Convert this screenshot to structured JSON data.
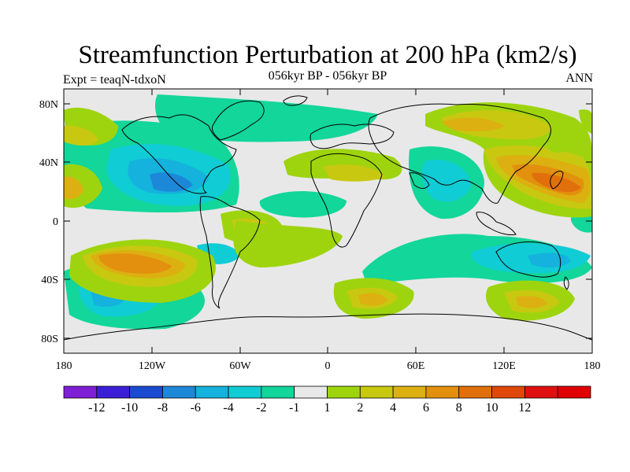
{
  "title": "Streamfunction Perturbation at 200 hPa (km2/s)",
  "subtitle": "056kyr BP - 056kyr BP",
  "left_label": "Expt = teaqN-tdxoN",
  "right_label": "ANN",
  "lat_ticks": [
    "80N",
    "40N",
    "0",
    "40S",
    "80S"
  ],
  "lon_ticks": [
    "180",
    "120W",
    "60W",
    "0",
    "60E",
    "120E",
    "180"
  ],
  "colorbar": {
    "colors": [
      "#7f1fd6",
      "#3a1fd6",
      "#1a4ad0",
      "#1e88d8",
      "#14b2dc",
      "#10ccd4",
      "#12d69a",
      "#e8e8e8",
      "#9ed40e",
      "#c8c810",
      "#dcb010",
      "#e2900e",
      "#e0700c",
      "#e0480a",
      "#e01010",
      "#e00000"
    ],
    "labels": [
      "-12",
      "-10",
      "-8",
      "-6",
      "-4",
      "-2",
      "-1",
      "1",
      "2",
      "4",
      "6",
      "8",
      "10",
      "12"
    ]
  },
  "field_colors": {
    "background": "#e8e8e8",
    "neg1": "#12d69a",
    "neg2": "#10ccd4",
    "neg3": "#14b2dc",
    "neg4": "#1e88d8",
    "pos1": "#9ed40e",
    "pos2": "#c8c810",
    "pos3": "#dcb010",
    "pos4": "#e2900e",
    "pos5": "#e0700c",
    "coast": "#000000"
  }
}
